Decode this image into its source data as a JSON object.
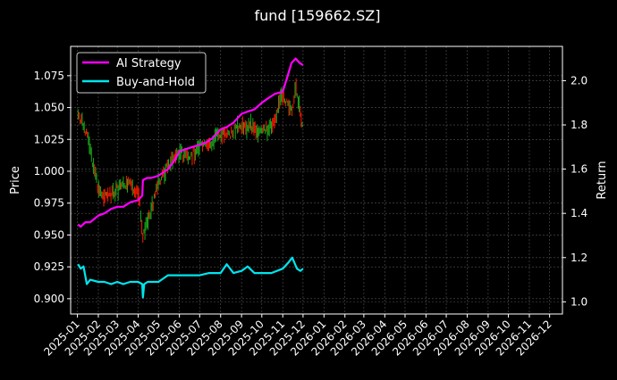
{
  "colors": {
    "background": "#000000",
    "axes": "#ffffff",
    "grid": "#555555",
    "ai_strategy": "#ff00ff",
    "buy_and_hold": "#00e5ee",
    "candle_up": "#ff1a00",
    "candle_down": "#1aa71a"
  },
  "chart_data": {
    "type": "line",
    "title": "fund [159662.SZ]",
    "ylabel_left": "Price",
    "ylabel_right": "Return",
    "xlabel": "",
    "grid": true,
    "legend_placement": "top-left",
    "xlim": [
      "2024-12-22",
      "2026-12-20"
    ],
    "ylim_left": [
      0.888,
      1.098
    ],
    "ylim_right": [
      0.945,
      2.155
    ],
    "x_ticks": [
      "2025-01-01",
      "2025-02-01",
      "2025-03-01",
      "2025-04-01",
      "2025-05-01",
      "2025-06-01",
      "2025-07-01",
      "2025-08-01",
      "2025-09-01",
      "2025-10-01",
      "2025-11-01",
      "2025-12-01",
      "2026-01-01",
      "2026-02-01",
      "2026-03-01",
      "2026-04-01",
      "2026-05-01",
      "2026-06-01",
      "2026-07-01",
      "2026-08-01",
      "2026-09-01",
      "2026-10-01",
      "2026-11-01",
      "2026-12-01"
    ],
    "x_tick_labels": [
      "2025-01",
      "2025-02",
      "2025-03",
      "2025-04",
      "2025-05",
      "2025-06",
      "2025-07",
      "2025-08",
      "2025-09",
      "2025-10",
      "2025-11",
      "2025-12",
      "2026-01",
      "2026-02",
      "2026-03",
      "2026-04",
      "2026-05",
      "2026-06",
      "2026-07",
      "2026-08",
      "2026-09",
      "2026-10",
      "2026-11",
      "2026-12"
    ],
    "y_left_ticks": [
      0.9,
      0.925,
      0.95,
      0.975,
      1.0,
      1.025,
      1.05,
      1.075
    ],
    "y_left_tick_labels": [
      "0.900",
      "0.925",
      "0.950",
      "0.975",
      "1.000",
      "1.025",
      "1.050",
      "1.075"
    ],
    "y_right_ticks": [
      1.0,
      1.2,
      1.4,
      1.6,
      1.8,
      2.0
    ],
    "y_right_tick_labels": [
      "1.0",
      "1.2",
      "1.4",
      "1.6",
      "1.8",
      "2.0"
    ],
    "price_series": {
      "name": "Price (candles)",
      "axis": "left",
      "x": [
        "2025-01-02",
        "2025-01-15",
        "2025-02-01",
        "2025-02-15",
        "2025-03-01",
        "2025-03-15",
        "2025-04-01",
        "2025-04-08",
        "2025-04-15",
        "2025-05-01",
        "2025-05-15",
        "2025-06-01",
        "2025-06-15",
        "2025-07-01",
        "2025-07-15",
        "2025-08-01",
        "2025-08-15",
        "2025-09-01",
        "2025-09-15",
        "2025-10-01",
        "2025-10-15",
        "2025-11-01",
        "2025-11-15",
        "2025-11-20",
        "2025-12-01"
      ],
      "y": [
        1.045,
        1.03,
        0.985,
        0.98,
        0.985,
        0.99,
        0.985,
        0.95,
        0.96,
        0.99,
        1.005,
        1.015,
        1.01,
        1.02,
        1.02,
        1.03,
        1.03,
        1.035,
        1.035,
        1.03,
        1.035,
        1.06,
        1.045,
        1.065,
        1.035
      ]
    },
    "series": [
      {
        "name": "AI Strategy",
        "axis": "right",
        "x": [
          "2025-01-02",
          "2025-01-06",
          "2025-01-13",
          "2025-01-20",
          "2025-02-01",
          "2025-02-10",
          "2025-02-20",
          "2025-03-01",
          "2025-03-10",
          "2025-03-20",
          "2025-04-01",
          "2025-04-07",
          "2025-04-08",
          "2025-04-14",
          "2025-04-20",
          "2025-05-01",
          "2025-05-15",
          "2025-05-25",
          "2025-06-01",
          "2025-06-10",
          "2025-06-20",
          "2025-07-01",
          "2025-07-10",
          "2025-07-20",
          "2025-08-01",
          "2025-08-10",
          "2025-08-20",
          "2025-09-01",
          "2025-09-10",
          "2025-09-20",
          "2025-10-01",
          "2025-10-10",
          "2025-10-20",
          "2025-11-01",
          "2025-11-07",
          "2025-11-14",
          "2025-11-20",
          "2025-11-26",
          "2025-12-01"
        ],
        "y": [
          1.35,
          1.34,
          1.36,
          1.36,
          1.39,
          1.4,
          1.42,
          1.43,
          1.43,
          1.45,
          1.46,
          1.48,
          1.55,
          1.56,
          1.56,
          1.57,
          1.6,
          1.64,
          1.68,
          1.69,
          1.7,
          1.71,
          1.72,
          1.74,
          1.78,
          1.79,
          1.81,
          1.85,
          1.86,
          1.87,
          1.9,
          1.92,
          1.94,
          1.95,
          2.01,
          2.08,
          2.1,
          2.08,
          2.07
        ]
      },
      {
        "name": "Buy-and-Hold",
        "axis": "right",
        "x": [
          "2025-01-02",
          "2025-01-06",
          "2025-01-10",
          "2025-01-15",
          "2025-01-20",
          "2025-02-01",
          "2025-02-10",
          "2025-02-20",
          "2025-03-01",
          "2025-03-10",
          "2025-03-20",
          "2025-04-01",
          "2025-04-07",
          "2025-04-08",
          "2025-04-10",
          "2025-04-15",
          "2025-05-01",
          "2025-05-15",
          "2025-06-01",
          "2025-06-15",
          "2025-07-01",
          "2025-07-15",
          "2025-08-01",
          "2025-08-10",
          "2025-08-20",
          "2025-09-01",
          "2025-09-10",
          "2025-09-20",
          "2025-10-01",
          "2025-10-15",
          "2025-11-01",
          "2025-11-10",
          "2025-11-15",
          "2025-11-22",
          "2025-11-27",
          "2025-12-01"
        ],
        "y": [
          1.17,
          1.15,
          1.16,
          1.08,
          1.1,
          1.09,
          1.09,
          1.08,
          1.09,
          1.08,
          1.09,
          1.09,
          1.08,
          1.02,
          1.08,
          1.09,
          1.09,
          1.12,
          1.12,
          1.12,
          1.12,
          1.13,
          1.13,
          1.17,
          1.13,
          1.14,
          1.16,
          1.13,
          1.13,
          1.13,
          1.15,
          1.18,
          1.2,
          1.15,
          1.14,
          1.15
        ]
      }
    ]
  }
}
